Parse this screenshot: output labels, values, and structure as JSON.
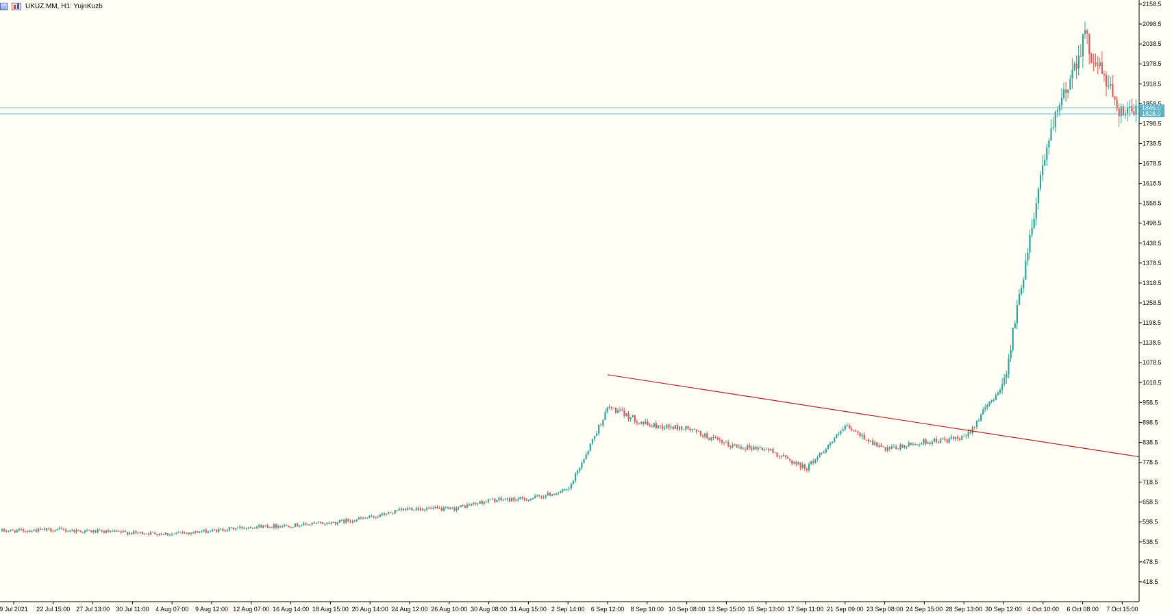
{
  "header": {
    "title": "UKUZ.MM, H1:  YujnKuzb"
  },
  "colors": {
    "background": "#fffff5",
    "bull": "#26a69a",
    "bear": "#ef5350",
    "trendline": "#b22222",
    "hline": "#5ab2c8",
    "axis": "#000000"
  },
  "current_price_labels": [
    "1846.0",
    "1828.0"
  ],
  "chart_data": {
    "type": "candlestick",
    "title": "UKUZ.MM, H1:  YujnKuzb",
    "ylim": [
      358.5,
      2158.5
    ],
    "y_ticks": [
      "2158.5",
      "2098.5",
      "2038.5",
      "1978.5",
      "1918.5",
      "1858.5",
      "1798.5",
      "1738.5",
      "1678.5",
      "1618.5",
      "1558.5",
      "1498.5",
      "1438.5",
      "1378.5",
      "1318.5",
      "1258.5",
      "1198.5",
      "1138.5",
      "1078.5",
      "1018.5",
      "958.5",
      "898.5",
      "838.5",
      "778.5",
      "718.5",
      "658.5",
      "598.5",
      "538.5",
      "478.5",
      "418.5"
    ],
    "x_ticks": [
      "9 Jul 2021",
      "22 Jul 15:00",
      "27 Jul 13:00",
      "30 Jul 11:00",
      "4 Aug 07:00",
      "9 Aug 12:00",
      "12 Aug 07:00",
      "16 Aug 14:00",
      "18 Aug 15:00",
      "20 Aug 14:00",
      "24 Aug 12:00",
      "26 Aug 10:00",
      "30 Aug 08:00",
      "31 Aug 15:00",
      "2 Sep 14:00",
      "6 Sep 12:00",
      "8 Sep 10:00",
      "10 Sep 08:00",
      "13 Sep 15:00",
      "15 Sep 13:00",
      "17 Sep 11:00",
      "21 Sep 09:00",
      "23 Sep 08:00",
      "24 Sep 15:00",
      "28 Sep 13:00",
      "30 Sep 12:00",
      "4 Oct 10:00",
      "6 Oct 08:00",
      "7 Oct 15:00"
    ],
    "horizontal_lines": [
      1846.0,
      1828.0
    ],
    "trendline": {
      "from_x": "6 Sep 12:00",
      "from_y": 1042,
      "to_x": "7 Oct 15:00",
      "to_y": 795
    },
    "close_path": [
      [
        "9 Jul 2021",
        572
      ],
      [
        "22 Jul 15:00",
        575
      ],
      [
        "27 Jul 13:00",
        570
      ],
      [
        "30 Jul 11:00",
        566
      ],
      [
        "4 Aug 07:00",
        563
      ],
      [
        "9 Aug 12:00",
        572
      ],
      [
        "12 Aug 07:00",
        585
      ],
      [
        "16 Aug 14:00",
        588
      ],
      [
        "18 Aug 15:00",
        596
      ],
      [
        "20 Aug 14:00",
        612
      ],
      [
        "24 Aug 12:00",
        640
      ],
      [
        "26 Aug 10:00",
        636
      ],
      [
        "30 Aug 08:00",
        664
      ],
      [
        "31 Aug 15:00",
        668
      ],
      [
        "2 Sep 14:00",
        695
      ],
      [
        "6 Sep 12:00",
        945
      ],
      [
        "8 Sep 10:00",
        890
      ],
      [
        "10 Sep 08:00",
        880
      ],
      [
        "13 Sep 15:00",
        830
      ],
      [
        "15 Sep 13:00",
        818
      ],
      [
        "17 Sep 11:00",
        760
      ],
      [
        "21 Sep 09:00",
        885
      ],
      [
        "23 Sep 08:00",
        815
      ],
      [
        "24 Sep 15:00",
        840
      ],
      [
        "28 Sep 13:00",
        850
      ],
      [
        "30 Sep 12:00",
        1020
      ],
      [
        "4 Oct 10:00",
        1700
      ],
      [
        "6 Oct 08:00",
        2060
      ],
      [
        "7 Oct 15:00",
        1828
      ]
    ]
  }
}
